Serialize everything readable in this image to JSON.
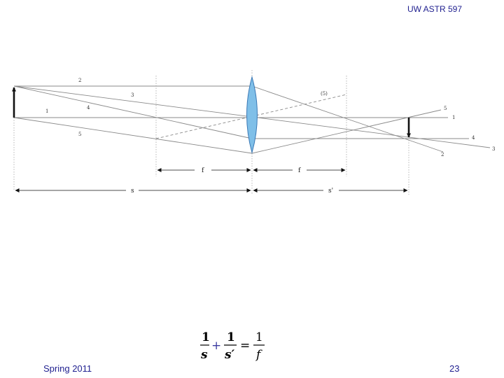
{
  "header": {
    "course": "UW ASTR 597"
  },
  "footer": {
    "term": "Spring 2011",
    "page": "23"
  },
  "diagram": {
    "ray_labels": {
      "r1_left": "1",
      "r2_left": "2",
      "r3_left": "3",
      "r4_left": "4",
      "r5_left": "5",
      "r5_virtual": "(5)",
      "r5_right": "5",
      "r1_right": "1",
      "r4_right": "4",
      "r3_right": "3",
      "r2_right": "2"
    },
    "dimensions": {
      "f_left": "f",
      "f_right": "f",
      "s": "s",
      "s_prime": "s'"
    },
    "colors": {
      "lens_fill": "#7fbfe8",
      "lens_stroke": "#3a78b5",
      "ray": "#8a8a8a",
      "text_blue": "#1f1f8f"
    }
  },
  "equation": {
    "one_a": "1",
    "s": "s",
    "plus": "+",
    "one_b": "1",
    "s_prime": "s′",
    "equals": "=",
    "one_c": "1",
    "f": "f"
  }
}
